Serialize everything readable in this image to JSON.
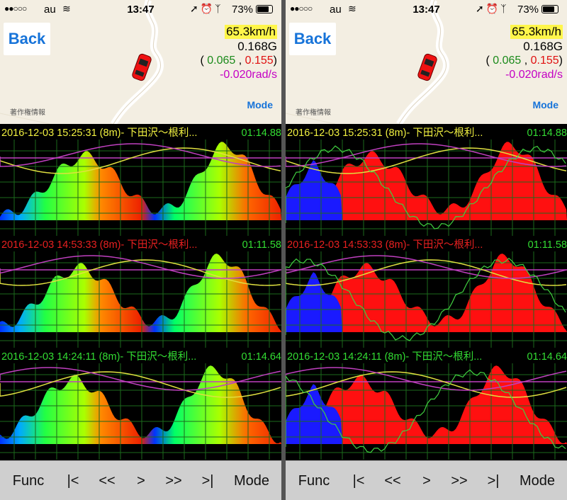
{
  "status": {
    "signal": "●●○○○",
    "carrier": "au",
    "time": "13:47",
    "battery": "73%"
  },
  "map": {
    "back_label": "Back",
    "speed": "65.3km/h",
    "g_total": "0.168G",
    "g_open": "( ",
    "g_x": "0.065",
    "g_sep": " , ",
    "g_y": "0.155",
    "g_close": ")",
    "yaw_rate": "-0.020rad/s",
    "mode_label": "Mode",
    "copyright": "著作権情報"
  },
  "sessions": [
    {
      "label": "2016-12-03 15:25:31 (8m)- 下田沢〜根利...",
      "label_color": "#f0f040",
      "laptime": "01:14.88"
    },
    {
      "label": "2016-12-03 14:53:33 (8m)- 下田沢〜根利...",
      "label_color": "#e82020",
      "laptime": "01:11.58"
    },
    {
      "label": "2016-12-03 14:24:11 (8m)- 下田沢〜根利...",
      "label_color": "#33dd33",
      "laptime": "01:14.64"
    }
  ],
  "toolbar": {
    "func": "Func",
    "first": "|<",
    "prev": "<<",
    "play": ">",
    "next": ">>",
    "last": ">|",
    "mode": "Mode"
  },
  "colors": {
    "grid": "#1c6a1c",
    "speed_line": "#e0e040",
    "g_line": "#40d040",
    "yaw_line": "#c040c0"
  },
  "icons": [
    "signal-dots-icon",
    "wifi-icon",
    "location-arrow-icon",
    "alarm-icon",
    "bluetooth-icon",
    "battery-icon",
    "car-icon"
  ]
}
